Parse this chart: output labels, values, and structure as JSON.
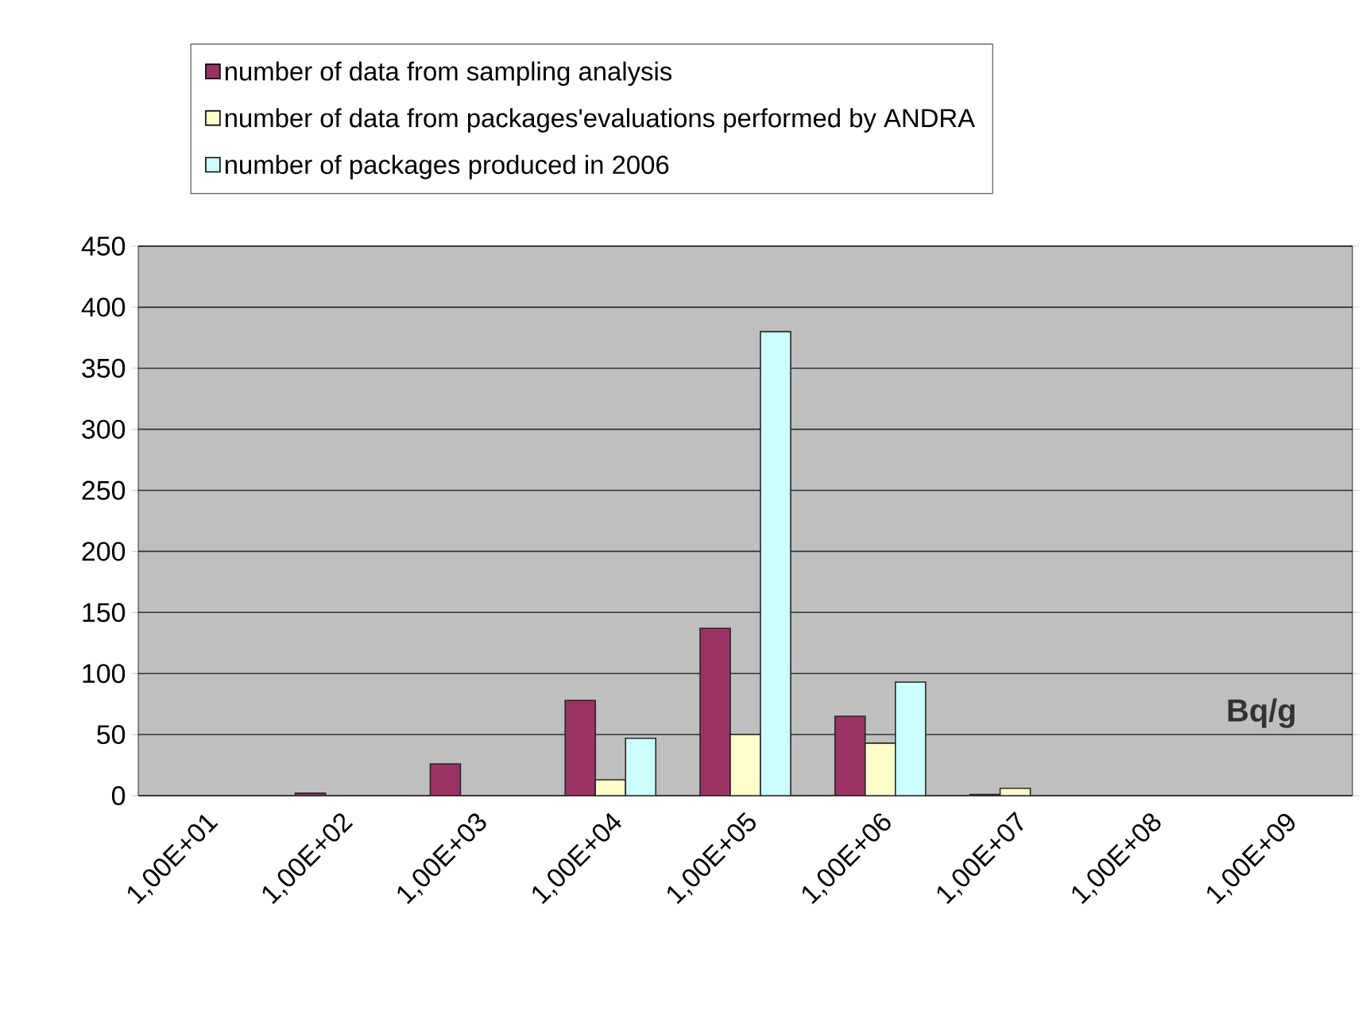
{
  "chart_data": {
    "type": "bar",
    "categories": [
      "1,00E+01",
      "1,00E+02",
      "1,00E+03",
      "1,00E+04",
      "1,00E+05",
      "1,00E+06",
      "1,00E+07",
      "1,00E+08",
      "1,00E+09"
    ],
    "series": [
      {
        "name": "number of data from sampling analysis",
        "color": "#993366",
        "values": [
          null,
          2,
          26,
          78,
          137,
          65,
          1,
          null,
          null
        ]
      },
      {
        "name": "number of data from packages'evaluations performed by ANDRA",
        "color": "#ffffcc",
        "values": [
          null,
          null,
          null,
          13,
          50,
          43,
          6,
          null,
          null
        ]
      },
      {
        "name": "number of packages produced in 2006",
        "color": "#ccffff",
        "values": [
          null,
          null,
          null,
          47,
          380,
          93,
          null,
          null,
          null
        ]
      }
    ],
    "ylim": [
      0,
      450
    ],
    "yticks": [
      0,
      50,
      100,
      150,
      200,
      250,
      300,
      350,
      400,
      450
    ],
    "grid": "y",
    "legend": "top",
    "annotations": [
      "Bq/g"
    ]
  }
}
